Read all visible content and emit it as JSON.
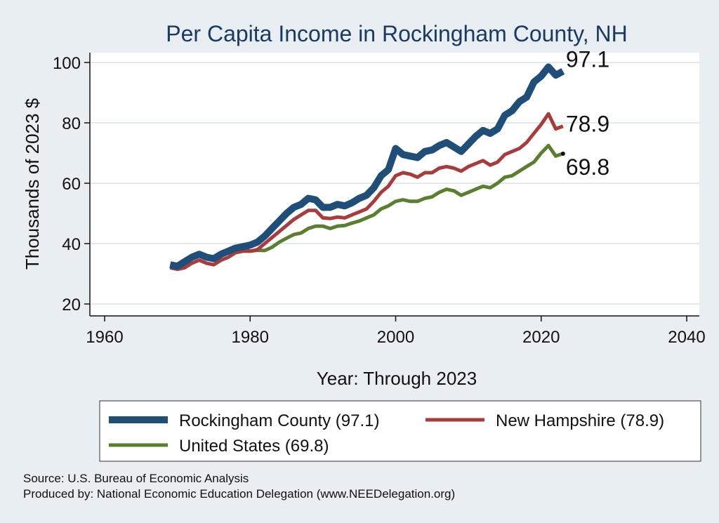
{
  "chart_data": {
    "type": "line",
    "title": "Per Capita Income in Rockingham County, NH",
    "xlabel": "Year: Through 2023",
    "ylabel": "Thousands of 2023 $",
    "xlim": [
      1960,
      2040
    ],
    "ylim": [
      20,
      100
    ],
    "x_ticks": [
      1960,
      1980,
      2000,
      2020,
      2040
    ],
    "y_ticks": [
      20,
      40,
      60,
      80,
      100
    ],
    "grid": "horizontal",
    "legend_position": "bottom",
    "series": [
      {
        "name": "Rockingham County (97.1)",
        "color": "#1f4e79",
        "end_label": "97.1",
        "x": [
          1969,
          1970,
          1971,
          1972,
          1973,
          1974,
          1975,
          1976,
          1977,
          1978,
          1979,
          1980,
          1981,
          1982,
          1983,
          1984,
          1985,
          1986,
          1987,
          1988,
          1989,
          1990,
          1991,
          1992,
          1993,
          1994,
          1995,
          1996,
          1997,
          1998,
          1999,
          2000,
          2001,
          2002,
          2003,
          2004,
          2005,
          2006,
          2007,
          2008,
          2009,
          2010,
          2011,
          2012,
          2013,
          2014,
          2015,
          2016,
          2017,
          2018,
          2019,
          2020,
          2021,
          2022,
          2023
        ],
        "values": [
          33,
          32.5,
          34,
          35.5,
          36.5,
          35.5,
          35,
          36.5,
          37.5,
          38.5,
          39,
          39.5,
          40.5,
          42.5,
          45,
          47.5,
          50,
          52,
          53,
          55,
          54.5,
          52,
          52,
          53,
          52.5,
          53.5,
          55,
          56,
          58.5,
          62.5,
          64.5,
          71.5,
          69.5,
          69,
          68.5,
          70.5,
          71,
          72.5,
          73.5,
          72,
          70.5,
          73,
          75.5,
          77.5,
          76.5,
          78,
          82.5,
          84,
          87,
          88.5,
          93.5,
          95.5,
          98.5,
          95.8,
          97.1
        ]
      },
      {
        "name": "New Hampshire (78.9)",
        "color": "#a83c3c",
        "end_label": "78.9",
        "x": [
          1969,
          1970,
          1971,
          1972,
          1973,
          1974,
          1975,
          1976,
          1977,
          1978,
          1979,
          1980,
          1981,
          1982,
          1983,
          1984,
          1985,
          1986,
          1987,
          1988,
          1989,
          1990,
          1991,
          1992,
          1993,
          1994,
          1995,
          1996,
          1997,
          1998,
          1999,
          2000,
          2001,
          2002,
          2003,
          2004,
          2005,
          2006,
          2007,
          2008,
          2009,
          2010,
          2011,
          2012,
          2013,
          2014,
          2015,
          2016,
          2017,
          2018,
          2019,
          2020,
          2021,
          2022,
          2023
        ],
        "values": [
          32,
          31.5,
          32,
          33.5,
          34.5,
          33.5,
          33,
          34.5,
          35.5,
          37,
          37.5,
          37.5,
          38,
          40,
          42,
          44,
          46,
          48,
          49.5,
          51,
          51,
          48.5,
          48.3,
          48.8,
          48.5,
          49.5,
          50.5,
          51.5,
          54,
          57,
          59,
          62.5,
          63.5,
          63,
          62,
          63.5,
          63.5,
          65,
          65.5,
          65,
          64,
          65.5,
          66.5,
          67.5,
          66,
          67,
          69.5,
          70.5,
          71.5,
          73.5,
          76.5,
          79.5,
          83,
          78,
          78.9
        ]
      },
      {
        "name": "United States (69.8)",
        "color": "#5a7f2e",
        "end_label": "69.8",
        "x": [
          1969,
          1970,
          1971,
          1972,
          1973,
          1974,
          1975,
          1976,
          1977,
          1978,
          1979,
          1980,
          1981,
          1982,
          1983,
          1984,
          1985,
          1986,
          1987,
          1988,
          1989,
          1990,
          1991,
          1992,
          1993,
          1994,
          1995,
          1996,
          1997,
          1998,
          1999,
          2000,
          2001,
          2002,
          2003,
          2004,
          2005,
          2006,
          2007,
          2008,
          2009,
          2010,
          2011,
          2012,
          2013,
          2014,
          2015,
          2016,
          2017,
          2018,
          2019,
          2020,
          2021,
          2022,
          2023
        ],
        "values": [
          33,
          32.5,
          33.5,
          35,
          36.5,
          36,
          35.5,
          36.5,
          37.5,
          38.5,
          38.5,
          37.5,
          37.8,
          37.7,
          38.8,
          40.5,
          41.8,
          43,
          43.5,
          45,
          45.8,
          45.8,
          45,
          45.8,
          46,
          46.8,
          47.5,
          48.5,
          49.5,
          51.5,
          52.5,
          54,
          54.5,
          54,
          54,
          55,
          55.5,
          57,
          58,
          57.5,
          56,
          57,
          58,
          59,
          58.5,
          60,
          62,
          62.5,
          64,
          65.5,
          67,
          70,
          72.5,
          69,
          69.8
        ]
      }
    ]
  },
  "footer": {
    "source": "Source: U.S. Bureau of Economic Analysis",
    "produced_by": "Produced by: National Economic Education Delegation (www.NEEDelegation.org)"
  }
}
